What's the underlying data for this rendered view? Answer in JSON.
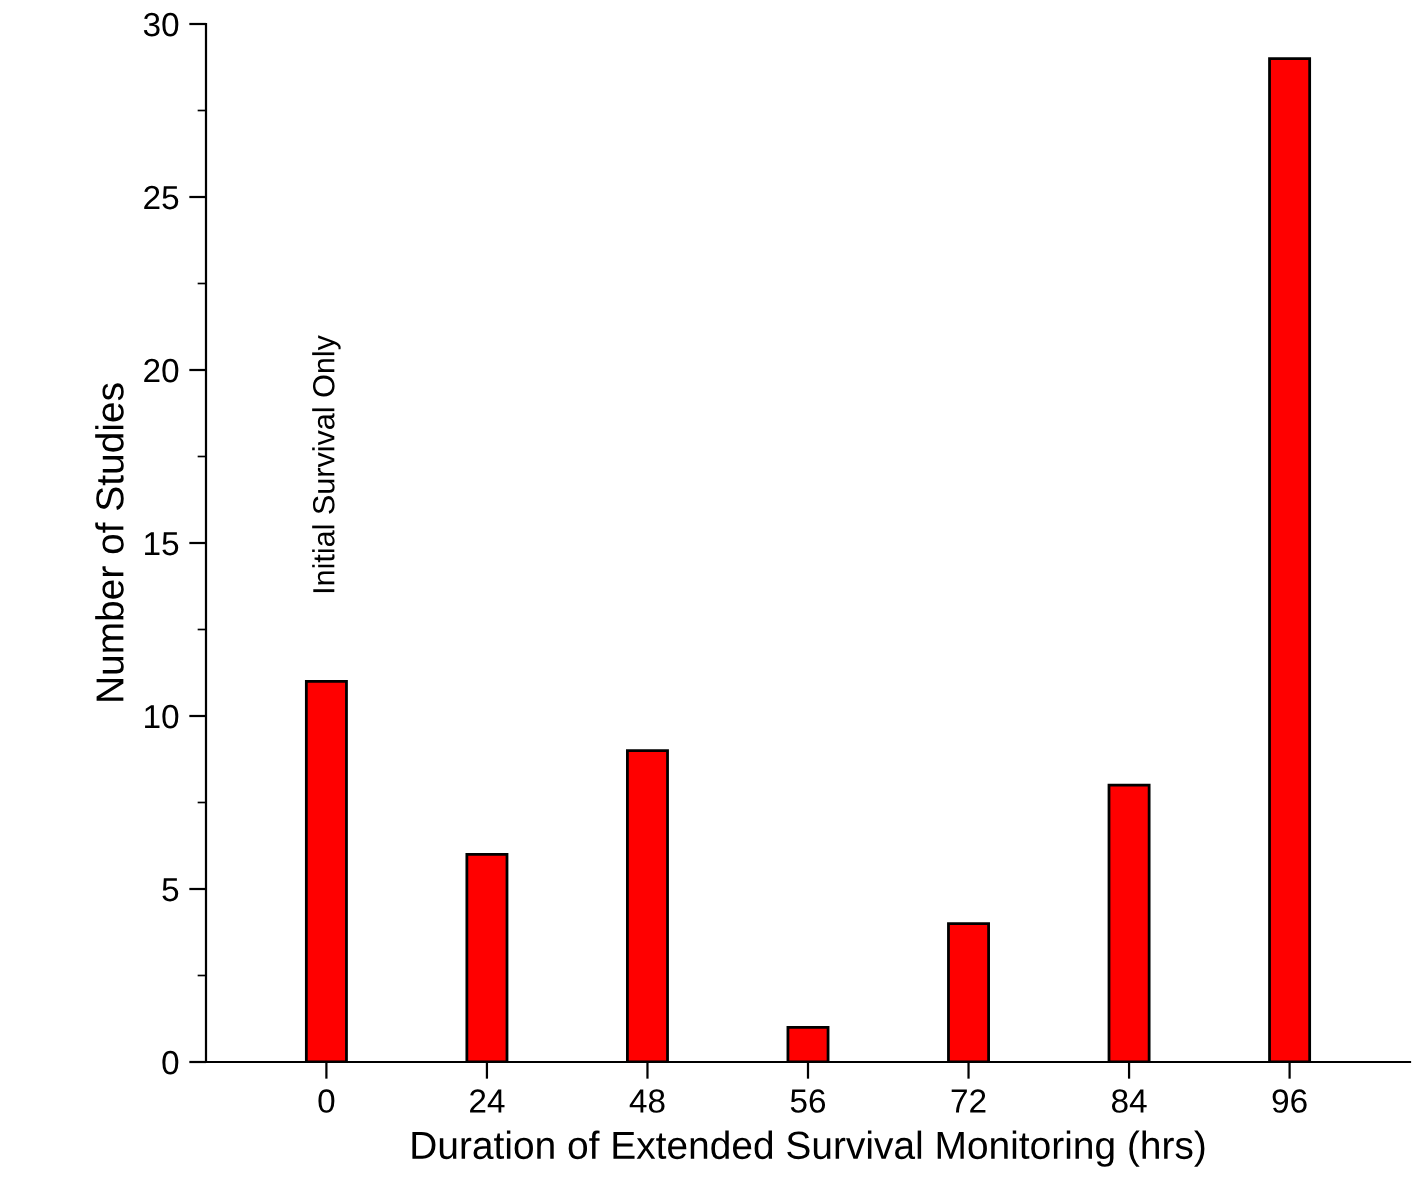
{
  "chart_data": {
    "type": "bar",
    "xlabel": "Duration of Extended Survival Monitoring (hrs)",
    "ylabel": "Number of Studies",
    "categories": [
      "0",
      "24",
      "48",
      "56",
      "72",
      "84",
      "96"
    ],
    "values": [
      11,
      6,
      9,
      1,
      4,
      8,
      29
    ],
    "color": "#ff0000",
    "ylim": [
      0,
      30
    ],
    "yticks": [
      0,
      {
        "value": 2.5,
        "label": null
      },
      5,
      {
        "value": 7.5,
        "label": null
      },
      10,
      {
        "value": 12.5,
        "label": null
      },
      15,
      {
        "value": 17.5,
        "label": null
      },
      20,
      {
        "value": 22.5,
        "label": null
      },
      25,
      {
        "value": 27.5,
        "label": null
      },
      30
    ],
    "annotations": [
      "Initial Survival Only"
    ],
    "grid": false,
    "legend": false
  }
}
